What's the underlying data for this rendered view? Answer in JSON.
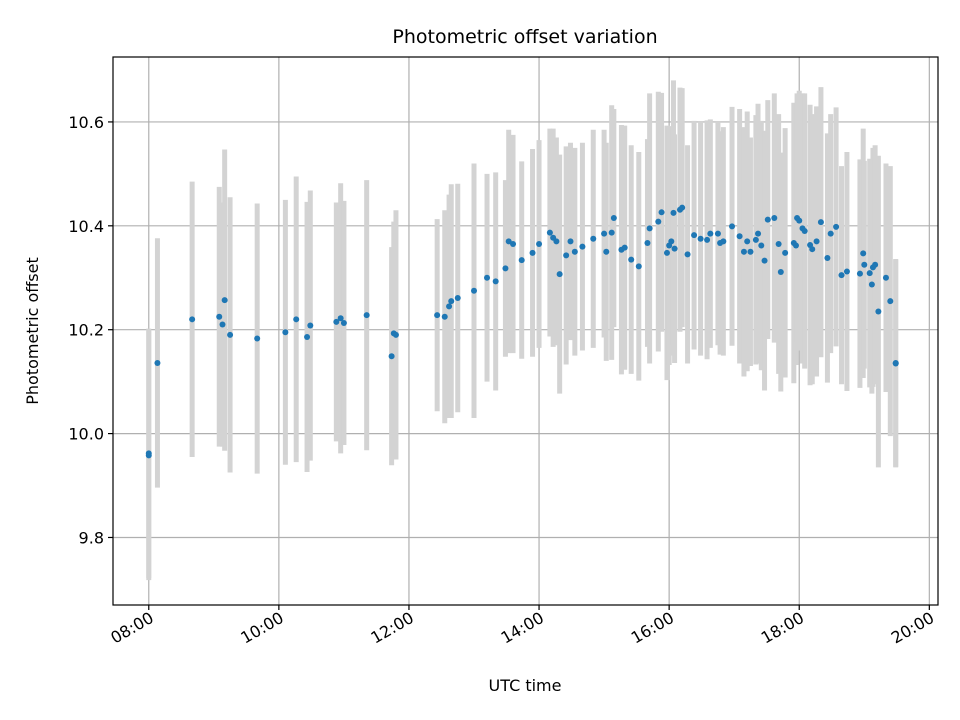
{
  "chart_data": {
    "type": "scatter",
    "title": "Photometric offset variation",
    "xlabel": "UTC time",
    "ylabel": "Photometric offset",
    "x_tick_labels": [
      "08:00",
      "10:00",
      "12:00",
      "14:00",
      "16:00",
      "18:00",
      "20:00"
    ],
    "y_tick_labels": [
      "9.8",
      "10.0",
      "10.2",
      "10.4",
      "10.6"
    ],
    "xlim": [
      "07:27",
      "20:08"
    ],
    "ylim": [
      9.67,
      10.725
    ],
    "grid": true,
    "colors": {
      "points": "#1f77b4",
      "error_bars": "#d3d3d3",
      "grid": "#b0b0b0",
      "axes": "#000000"
    },
    "series": [
      {
        "x": [
          "08:00",
          "08:00",
          "08:08",
          "08:40",
          "09:05",
          "09:08",
          "09:10",
          "09:15",
          "09:40",
          "10:06",
          "10:16",
          "10:26",
          "10:29",
          "10:53",
          "10:57",
          "11:00",
          "11:21",
          "11:44",
          "11:46",
          "11:48",
          "12:26",
          "12:33",
          "12:37",
          "12:39",
          "12:45",
          "13:00",
          "13:12",
          "13:20",
          "13:29",
          "13:32",
          "13:36",
          "13:44",
          "13:54",
          "14:00",
          "14:10",
          "14:13",
          "14:16",
          "14:19",
          "14:25",
          "14:29",
          "14:33",
          "14:40",
          "14:50",
          "15:00",
          "15:02",
          "15:07",
          "15:09",
          "15:16",
          "15:19",
          "15:25",
          "15:32",
          "15:40",
          "15:42",
          "15:50",
          "15:53",
          "15:58",
          "16:00",
          "16:02",
          "16:04",
          "16:05",
          "16:10",
          "16:12",
          "16:17",
          "16:23",
          "16:29",
          "16:35",
          "16:38",
          "16:45",
          "16:47",
          "16:50",
          "16:58",
          "17:05",
          "17:09",
          "17:12",
          "17:15",
          "17:20",
          "17:22",
          "17:25",
          "17:28",
          "17:31",
          "17:37",
          "17:41",
          "17:43",
          "17:47",
          "17:55",
          "17:57",
          "17:58",
          "18:00",
          "18:03",
          "18:05",
          "18:10",
          "18:12",
          "18:16",
          "18:20",
          "18:26",
          "18:29",
          "18:34",
          "18:39",
          "18:44",
          "18:56",
          "18:59",
          "19:00",
          "19:05",
          "19:07",
          "19:08",
          "19:10",
          "19:13",
          "19:20",
          "19:24",
          "19:29",
          "19:29"
        ],
        "y": [
          9.958,
          9.962,
          10.136,
          10.22,
          10.225,
          10.21,
          10.257,
          10.19,
          10.183,
          10.195,
          10.22,
          10.186,
          10.208,
          10.215,
          10.222,
          10.213,
          10.228,
          10.149,
          10.193,
          10.19,
          10.228,
          10.225,
          10.245,
          10.255,
          10.261,
          10.275,
          10.3,
          10.293,
          10.318,
          10.37,
          10.365,
          10.334,
          10.348,
          10.365,
          10.387,
          10.377,
          10.37,
          10.307,
          10.343,
          10.37,
          10.35,
          10.36,
          10.375,
          10.385,
          10.35,
          10.387,
          10.415,
          10.354,
          10.358,
          10.335,
          10.322,
          10.367,
          10.395,
          10.408,
          10.426,
          10.348,
          10.362,
          10.37,
          10.425,
          10.356,
          10.431,
          10.435,
          10.345,
          10.382,
          10.375,
          10.373,
          10.385,
          10.385,
          10.367,
          10.37,
          10.399,
          10.38,
          10.35,
          10.37,
          10.35,
          10.373,
          10.385,
          10.362,
          10.333,
          10.412,
          10.415,
          10.365,
          10.311,
          10.348,
          10.367,
          10.362,
          10.415,
          10.41,
          10.395,
          10.39,
          10.363,
          10.355,
          10.37,
          10.407,
          10.338,
          10.385,
          10.398,
          10.305,
          10.312,
          10.308,
          10.347,
          10.325,
          10.309,
          10.287,
          10.32,
          10.325,
          10.235,
          10.3,
          10.255,
          10.136,
          10.135
        ],
        "yerr": [
          0.24,
          0.24,
          0.24,
          0.265,
          0.25,
          0.235,
          0.29,
          0.265,
          0.26,
          0.255,
          0.275,
          0.26,
          0.26,
          0.23,
          0.26,
          0.235,
          0.26,
          0.21,
          0.215,
          0.24,
          0.185,
          0.205,
          0.215,
          0.225,
          0.22,
          0.245,
          0.2,
          0.21,
          0.17,
          0.215,
          0.21,
          0.19,
          0.2,
          0.2,
          0.2,
          0.21,
          0.2,
          0.23,
          0.21,
          0.19,
          0.2,
          0.2,
          0.21,
          0.2,
          0.21,
          0.245,
          0.21,
          0.24,
          0.235,
          0.22,
          0.22,
          0.2,
          0.26,
          0.25,
          0.23,
          0.245,
          0.23,
          0.22,
          0.255,
          0.22,
          0.235,
          0.23,
          0.21,
          0.22,
          0.225,
          0.23,
          0.22,
          0.215,
          0.215,
          0.22,
          0.23,
          0.245,
          0.24,
          0.25,
          0.22,
          0.24,
          0.25,
          0.24,
          0.25,
          0.23,
          0.24,
          0.25,
          0.23,
          0.24,
          0.27,
          0.23,
          0.24,
          0.25,
          0.26,
          0.265,
          0.27,
          0.26,
          0.26,
          0.26,
          0.24,
          0.23,
          0.23,
          0.21,
          0.23,
          0.22,
          0.24,
          0.2,
          0.22,
          0.21,
          0.23,
          0.23,
          0.3,
          0.22,
          0.26,
          0.2,
          0.2
        ]
      }
    ]
  }
}
